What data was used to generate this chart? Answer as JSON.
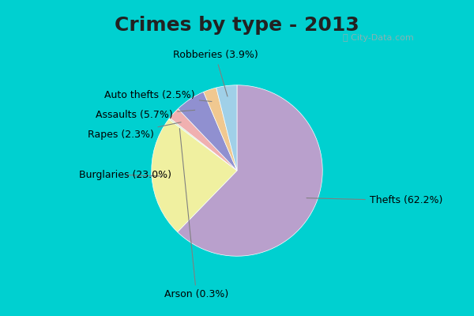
{
  "title": "Crimes by type - 2013",
  "slices": [
    {
      "label": "Thefts",
      "pct": 62.2,
      "color": "#b9a0cc"
    },
    {
      "label": "Burglaries",
      "pct": 23.0,
      "color": "#f0f0a0"
    },
    {
      "label": "Arson",
      "pct": 0.3,
      "color": "#d4eac8"
    },
    {
      "label": "Rapes",
      "pct": 2.3,
      "color": "#f0b0b0"
    },
    {
      "label": "Assaults",
      "pct": 5.7,
      "color": "#9090d0"
    },
    {
      "label": "Auto thefts",
      "pct": 2.5,
      "color": "#f0c890"
    },
    {
      "label": "Robberies",
      "pct": 3.9,
      "color": "#a0d0e8"
    }
  ],
  "background_top": "#00d0d0",
  "background_main": "#d8eed8",
  "title_fontsize": 18,
  "label_fontsize": 9
}
